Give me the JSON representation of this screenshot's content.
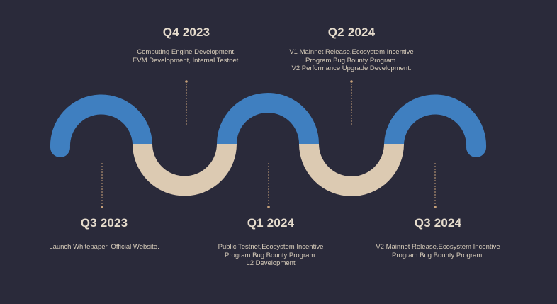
{
  "colors": {
    "background": "#2a2a3a",
    "arch_blue": "#3f7fc0",
    "arch_beige": "#dccab2",
    "connector": "#c8a27a"
  },
  "milestones": [
    {
      "title": "Q3 2023",
      "lines": [
        "Launch Whitepaper, Official Website."
      ]
    },
    {
      "title": "Q4 2023",
      "lines": [
        "Computing Engine Development,",
        "EVM Development, Internal Testnet."
      ]
    },
    {
      "title": "Q1 2024",
      "lines": [
        "Public Testnet,Ecosystem Incentive",
        "Program.Bug Bounty Program.",
        "L2 Development"
      ]
    },
    {
      "title": "Q2 2024",
      "lines": [
        "V1 Mainnet Release,Ecosystem Incentive",
        "Program.Bug Bounty Program.",
        "V2 Performance Upgrade Development."
      ]
    },
    {
      "title": "Q3 2024",
      "lines": [
        "V2 Mainnet Release,Ecosystem Incentive",
        "Program.Bug Bounty Program."
      ]
    }
  ]
}
